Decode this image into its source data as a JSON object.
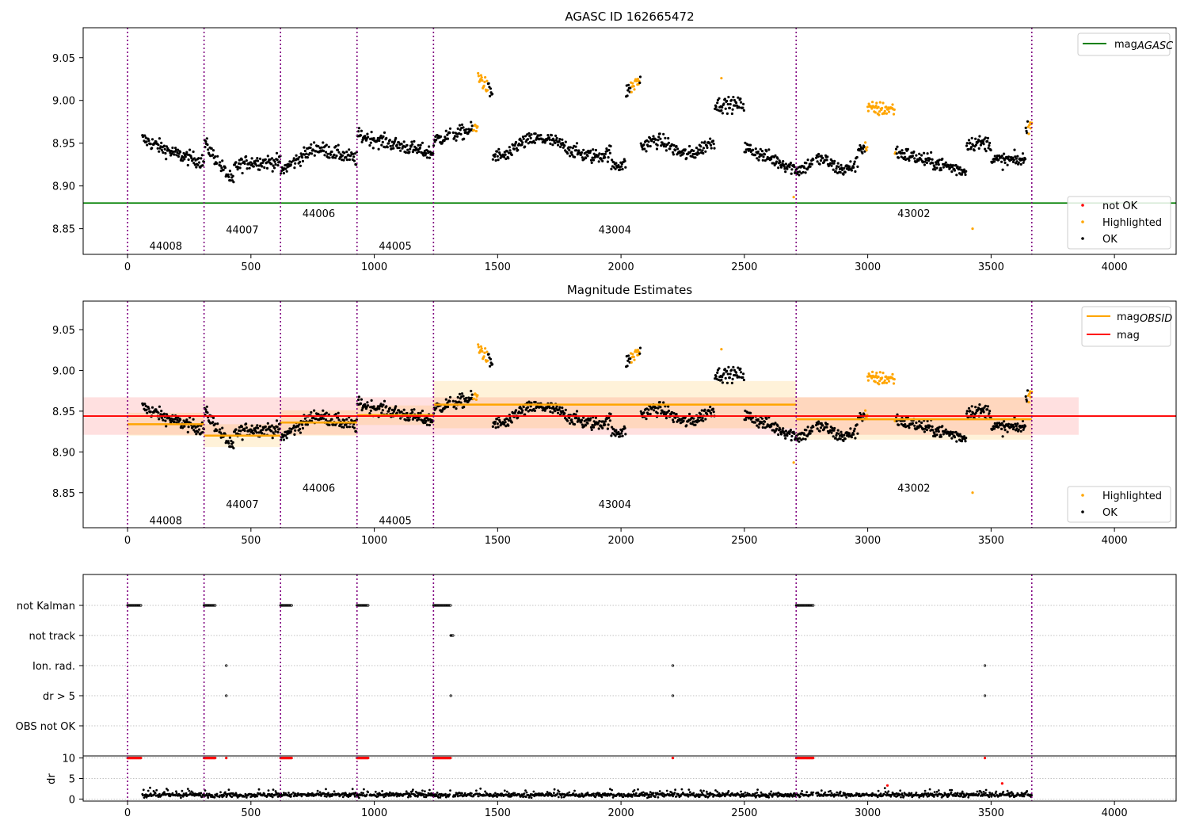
{
  "chart_data": [
    {
      "type": "scatter",
      "title": "AGASC ID 162665472",
      "xlim": [
        -180,
        4250
      ],
      "ylim": [
        8.82,
        9.085
      ],
      "x_ticks": [
        0,
        500,
        1000,
        1500,
        2000,
        2500,
        3000,
        3500,
        4000
      ],
      "y_ticks": [
        8.85,
        8.9,
        8.95,
        9.0,
        9.05
      ],
      "y_tick_labels": [
        "8.85",
        "8.90",
        "8.95",
        "9.00",
        "9.05"
      ],
      "mag_agasc": 8.88,
      "obsid_boundaries": [
        0,
        310,
        620,
        930,
        1240,
        2710,
        3665
      ],
      "obsid_labels": [
        {
          "label": "44008",
          "x": 155,
          "y": 8.83
        },
        {
          "label": "44007",
          "x": 465,
          "y": 8.849
        },
        {
          "label": "44006",
          "x": 775,
          "y": 8.868
        },
        {
          "label": "44005",
          "x": 1085,
          "y": 8.83
        },
        {
          "label": "43004",
          "x": 1975,
          "y": 8.849
        },
        {
          "label": "43002",
          "x": 3187,
          "y": 8.868
        }
      ],
      "legend_line": {
        "label": "mag",
        "sub": "AGASC",
        "color": "#008000"
      },
      "legend_points": [
        {
          "label": "not OK",
          "color": "#ff0000"
        },
        {
          "label": "Highlighted",
          "color": "#ffa500"
        },
        {
          "label": "OK",
          "color": "#000000"
        }
      ]
    },
    {
      "type": "scatter",
      "title": "Magnitude Estimates",
      "xlim": [
        -180,
        4250
      ],
      "ylim": [
        8.807,
        9.085
      ],
      "x_ticks": [
        0,
        500,
        1000,
        1500,
        2000,
        2500,
        3000,
        3500,
        4000
      ],
      "y_ticks": [
        8.85,
        8.9,
        8.95,
        9.0,
        9.05
      ],
      "y_tick_labels": [
        "8.85",
        "8.90",
        "8.95",
        "9.00",
        "9.05"
      ],
      "mag": 8.944,
      "mag_band": [
        8.921,
        8.967
      ],
      "mag_band_xrange": [
        -180,
        3855
      ],
      "obsid_mags": [
        {
          "x0": 0,
          "x1": 310,
          "mag": 8.934,
          "lo": 8.92,
          "hi": 8.948
        },
        {
          "x0": 310,
          "x1": 620,
          "mag": 8.92,
          "lo": 8.906,
          "hi": 8.934
        },
        {
          "x0": 620,
          "x1": 930,
          "mag": 8.936,
          "lo": 8.92,
          "hi": 8.951
        },
        {
          "x0": 930,
          "x1": 1240,
          "mag": 8.945,
          "lo": 8.933,
          "hi": 8.957
        },
        {
          "x0": 1240,
          "x1": 2710,
          "mag": 8.958,
          "lo": 8.929,
          "hi": 8.987
        },
        {
          "x0": 2710,
          "x1": 3665,
          "mag": 8.94,
          "lo": 8.915,
          "hi": 8.967
        }
      ],
      "obsid_labels": [
        {
          "label": "44008",
          "x": 155,
          "y": 8.816
        },
        {
          "label": "44007",
          "x": 465,
          "y": 8.836
        },
        {
          "label": "44006",
          "x": 775,
          "y": 8.856
        },
        {
          "label": "44005",
          "x": 1085,
          "y": 8.816
        },
        {
          "label": "43004",
          "x": 1975,
          "y": 8.836
        },
        {
          "label": "43002",
          "x": 3187,
          "y": 8.856
        }
      ],
      "legend_lines": [
        {
          "label": "mag",
          "sub": "OBSID",
          "color": "#ffa500"
        },
        {
          "label": "mag",
          "sub": "",
          "color": "#ff0000"
        }
      ],
      "legend_points": [
        {
          "label": "Highlighted",
          "color": "#ffa500"
        },
        {
          "label": "OK",
          "color": "#000000"
        }
      ]
    },
    {
      "type": "scatter",
      "title": "",
      "xlim": [
        -180,
        4250
      ],
      "categories": [
        "not Kalman",
        "not track",
        "Ion. rad.",
        "dr > 5",
        "OBS not OK"
      ],
      "category_points": [
        {
          "category": "not Kalman",
          "ranges": [
            [
              0,
              55
            ],
            [
              310,
              355
            ],
            [
              620,
              665
            ],
            [
              930,
              975
            ],
            [
              1240,
              1310
            ],
            [
              2710,
              2780
            ]
          ]
        },
        {
          "category": "not track",
          "ranges": [
            [
              1310,
              1320
            ]
          ]
        },
        {
          "category": "Ion. rad.",
          "ranges": [
            [
              400,
              400
            ],
            [
              2210,
              2210
            ],
            [
              3475,
              3475
            ]
          ]
        },
        {
          "category": "dr > 5",
          "ranges": [
            [
              400,
              400
            ],
            [
              1310,
              1310
            ],
            [
              2210,
              2210
            ],
            [
              3475,
              3475
            ]
          ]
        },
        {
          "category": "OBS not OK",
          "ranges": []
        }
      ],
      "dr_ylabel": "dr",
      "dr_ylim": [
        -0.5,
        10.5
      ],
      "dr_ticks": [
        0,
        5,
        10
      ],
      "dr_tick_labels": [
        "0",
        "5",
        "10"
      ]
    }
  ],
  "x_tick_labels": [
    "0",
    "500",
    "1000",
    "1500",
    "2000",
    "2500",
    "3000",
    "3500",
    "4000"
  ],
  "colors": {
    "ok": "#000000",
    "highlighted": "#ffa500",
    "not_ok": "#ff0000",
    "agasc_line": "#008000",
    "obsid_line": "#ffa500",
    "mag_line": "#ff0000",
    "boundary": "#800080"
  }
}
